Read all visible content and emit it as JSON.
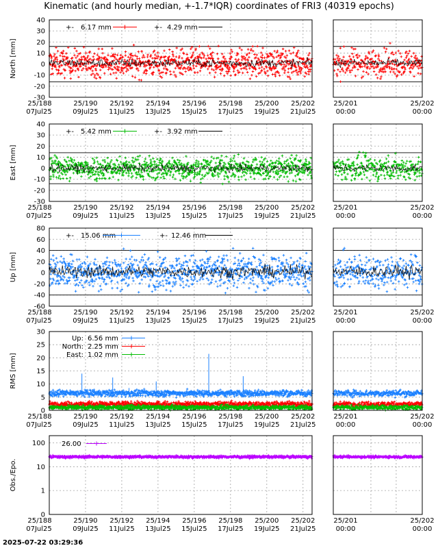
{
  "title": "Kinematic (and hourly median, +-1.7*IQR) coordinates of FRI3 (40319 epochs)",
  "timestamp": "2025-07-22 03:29:36",
  "x_main_ticks": [
    {
      "top": "25/188",
      "bottom": "07Jul25"
    },
    {
      "top": "25/190",
      "bottom": "09Jul25"
    },
    {
      "top": "25/192",
      "bottom": "11Jul25"
    },
    {
      "top": "25/194",
      "bottom": "13Jul25"
    },
    {
      "top": "25/196",
      "bottom": "15Jul25"
    },
    {
      "top": "25/198",
      "bottom": "17Jul25"
    },
    {
      "top": "25/200",
      "bottom": "19Jul25"
    },
    {
      "top": "25/202",
      "bottom": "21Jul25"
    }
  ],
  "x_zoom_ticks": [
    {
      "top": "25/201",
      "bottom": "00:00"
    },
    {
      "top": "25/202",
      "bottom": "00:00"
    }
  ],
  "colors": {
    "north": "#ff0000",
    "east": "#00bb00",
    "up": "#1a80ff",
    "obs": "#bb00ff",
    "median": "#000000"
  },
  "chart_data": [
    {
      "type": "scatter",
      "ylabel": "North [mm]",
      "ylim": [
        -30,
        40
      ],
      "yticks": [
        -30,
        -20,
        -10,
        0,
        10,
        20,
        30,
        40
      ],
      "x_range_days": [
        188,
        202.5
      ],
      "thresholds": [
        16,
        -16
      ],
      "legend": [
        {
          "symbol": "+-",
          "value": "6.17 mm",
          "color": "#ff0000"
        },
        {
          "symbol": "+-",
          "value": "4.29 mm",
          "color": "#000000"
        }
      ],
      "series": [
        {
          "label": "kinematic",
          "center": 1,
          "spread": 6.2,
          "color": "#ff0000"
        },
        {
          "label": "hourly median",
          "center": 1,
          "spread": 3,
          "color": "#000000"
        }
      ]
    },
    {
      "type": "scatter",
      "ylabel": "East [mm]",
      "ylim": [
        -30,
        40
      ],
      "yticks": [
        -30,
        -20,
        -10,
        0,
        10,
        20,
        30,
        40
      ],
      "x_range_days": [
        188,
        202.5
      ],
      "thresholds": [
        14,
        -14
      ],
      "legend": [
        {
          "symbol": "+-",
          "value": "5.42 mm",
          "color": "#00bb00"
        },
        {
          "symbol": "+-",
          "value": "3.92 mm",
          "color": "#000000"
        }
      ],
      "series": [
        {
          "label": "kinematic",
          "center": 0,
          "spread": 5.4,
          "color": "#00bb00"
        },
        {
          "label": "hourly median",
          "center": 0,
          "spread": 3,
          "color": "#000000"
        }
      ]
    },
    {
      "type": "scatter",
      "ylabel": "Up [mm]",
      "ylim": [
        -60,
        80
      ],
      "yticks": [
        -60,
        -40,
        -20,
        0,
        20,
        40,
        60,
        80
      ],
      "x_range_days": [
        188,
        202.5
      ],
      "thresholds": [
        40,
        -40
      ],
      "legend": [
        {
          "symbol": "+-",
          "value": "15.06 mm",
          "color": "#1a80ff"
        },
        {
          "symbol": "+-",
          "value": "12.46 mm",
          "color": "#000000"
        }
      ],
      "series": [
        {
          "label": "kinematic",
          "center": 2,
          "spread": 15,
          "color": "#1a80ff"
        },
        {
          "label": "hourly median",
          "center": 2,
          "spread": 9,
          "color": "#000000"
        }
      ]
    },
    {
      "type": "scatter",
      "ylabel": "RMS [mm]",
      "ylim": [
        0,
        30
      ],
      "yticks": [
        0,
        5,
        10,
        15,
        20,
        25,
        30
      ],
      "x_range_days": [
        188,
        202.5
      ],
      "legend": [
        {
          "symbol": "Up:",
          "value": "6.56 mm",
          "color": "#1a80ff"
        },
        {
          "symbol": "North:",
          "value": "2.25 mm",
          "color": "#ff0000"
        },
        {
          "symbol": "East:",
          "value": "1.02 mm",
          "color": "#00bb00"
        }
      ],
      "series": [
        {
          "label": "Up",
          "center": 6.5,
          "spread": 0.6,
          "color": "#1a80ff"
        },
        {
          "label": "North",
          "center": 2.3,
          "spread": 0.5,
          "color": "#ff0000"
        },
        {
          "label": "East",
          "center": 1.1,
          "spread": 0.4,
          "color": "#00bb00"
        }
      ],
      "spikes": [
        {
          "day": 189.8,
          "value": 14
        },
        {
          "day": 191.5,
          "value": 12.5
        },
        {
          "day": 192.4,
          "value": 8.5
        },
        {
          "day": 193.9,
          "value": 11
        },
        {
          "day": 196.8,
          "value": 21.5
        },
        {
          "day": 198.7,
          "value": 13
        }
      ]
    },
    {
      "type": "scatter",
      "ylabel": "Obs./Epo.",
      "yscale": "log",
      "ylim": [
        0,
        200
      ],
      "yticks": [
        0,
        1,
        10,
        100
      ],
      "x_range_days": [
        188,
        202.5
      ],
      "legend": [
        {
          "symbol": "",
          "value": "26.00",
          "color": "#bb00ff"
        }
      ],
      "series": [
        {
          "label": "Obs./Epo.",
          "center": 26,
          "spread": 1.5,
          "color": "#bb00ff"
        }
      ]
    }
  ]
}
